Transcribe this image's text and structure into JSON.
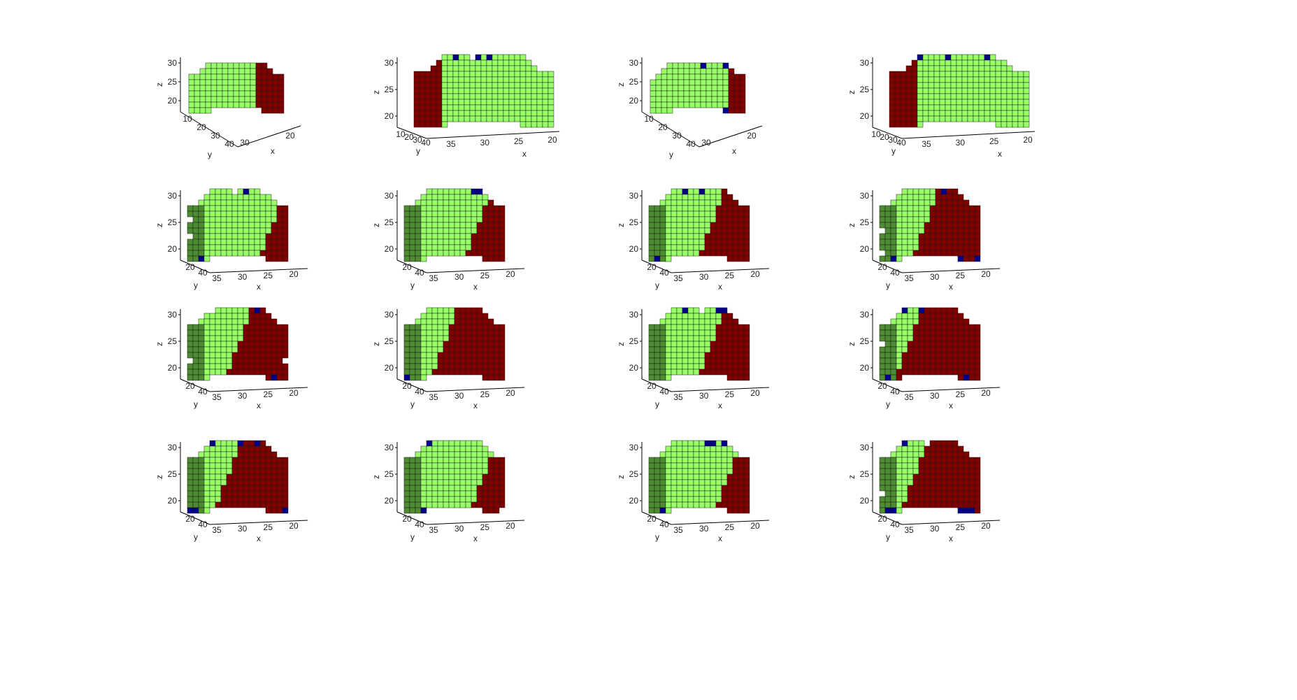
{
  "colors": {
    "light_green": "#99ff66",
    "dark_green": "#4d8c33",
    "dark_red": "#800000",
    "dark_blue": "#00008b",
    "axis": "#000000",
    "voxel_edge": "#1a1a1a"
  },
  "chart_data": [
    {
      "type": "voxel3d",
      "view": "oblique-yx",
      "axes": {
        "x": {
          "label": "x",
          "ticks": [
            "30",
            "20"
          ]
        },
        "y": {
          "label": "y",
          "ticks": [
            "10",
            "20",
            "30",
            "40"
          ]
        },
        "z": {
          "label": "z",
          "ticks": [
            "30",
            "25",
            "20"
          ]
        }
      },
      "segments": {
        "green_fraction": 0.72,
        "red_fraction": 0.26,
        "blue_fraction": 0.02
      }
    },
    {
      "type": "voxel3d",
      "view": "side-y",
      "axes": {
        "x": {
          "label": "x",
          "ticks": [
            "35",
            "30",
            "25",
            "20"
          ]
        },
        "y": {
          "label": "y",
          "ticks": [
            "10",
            "20",
            "30",
            "40"
          ]
        },
        "z": {
          "label": "z",
          "ticks": [
            "30",
            "25",
            "20"
          ]
        }
      },
      "segments": {
        "green_fraction": 0.82,
        "red_fraction": 0.16,
        "blue_fraction": 0.02
      }
    },
    {
      "type": "voxel3d",
      "view": "oblique-yx",
      "axes": {
        "x": {
          "label": "x",
          "ticks": [
            "30",
            "20"
          ]
        },
        "y": {
          "label": "y",
          "ticks": [
            "10",
            "20",
            "30",
            "40"
          ]
        },
        "z": {
          "label": "z",
          "ticks": [
            "30",
            "25",
            "20"
          ]
        }
      },
      "segments": {
        "green_fraction": 0.8,
        "red_fraction": 0.18,
        "blue_fraction": 0.02
      }
    },
    {
      "type": "voxel3d",
      "view": "side-y",
      "axes": {
        "x": {
          "label": "x",
          "ticks": [
            "35",
            "30",
            "25",
            "20"
          ]
        },
        "y": {
          "label": "y",
          "ticks": [
            "10",
            "20",
            "30",
            "40"
          ]
        },
        "z": {
          "label": "z",
          "ticks": [
            "30",
            "25",
            "20"
          ]
        }
      },
      "segments": {
        "green_fraction": 0.8,
        "red_fraction": 0.18,
        "blue_fraction": 0.02
      }
    },
    {
      "type": "voxel3d",
      "view": "front-x",
      "axes": {
        "x": {
          "label": "x",
          "ticks": [
            "35",
            "30",
            "25",
            "20"
          ]
        },
        "y": {
          "label": "y",
          "ticks": [
            "20",
            "40"
          ]
        },
        "z": {
          "label": "z",
          "ticks": [
            "30",
            "25",
            "20"
          ]
        }
      },
      "segments": {
        "green_fraction": 0.84,
        "red_fraction": 0.14,
        "blue_fraction": 0.02
      }
    },
    {
      "type": "voxel3d",
      "view": "front-x",
      "axes": {
        "x": {
          "label": "x",
          "ticks": [
            "35",
            "30",
            "25",
            "20"
          ]
        },
        "y": {
          "label": "y",
          "ticks": [
            "20",
            "40"
          ]
        },
        "z": {
          "label": "z",
          "ticks": [
            "30",
            "25",
            "20"
          ]
        }
      },
      "segments": {
        "green_fraction": 0.72,
        "red_fraction": 0.26,
        "blue_fraction": 0.02
      }
    },
    {
      "type": "voxel3d",
      "view": "front-x",
      "axes": {
        "x": {
          "label": "x",
          "ticks": [
            "35",
            "30",
            "25",
            "20"
          ]
        },
        "y": {
          "label": "y",
          "ticks": [
            "20",
            "40"
          ]
        },
        "z": {
          "label": "z",
          "ticks": [
            "30",
            "25",
            "20"
          ]
        }
      },
      "segments": {
        "green_fraction": 0.6,
        "red_fraction": 0.38,
        "blue_fraction": 0.02
      }
    },
    {
      "type": "voxel3d",
      "view": "front-x",
      "axes": {
        "x": {
          "label": "x",
          "ticks": [
            "35",
            "30",
            "25",
            "20"
          ]
        },
        "y": {
          "label": "y",
          "ticks": [
            "20",
            "40"
          ]
        },
        "z": {
          "label": "z",
          "ticks": [
            "30",
            "25",
            "20"
          ]
        }
      },
      "segments": {
        "green_fraction": 0.45,
        "red_fraction": 0.53,
        "blue_fraction": 0.02
      }
    },
    {
      "type": "voxel3d",
      "view": "front-x",
      "axes": {
        "x": {
          "label": "x",
          "ticks": [
            "35",
            "30",
            "25",
            "20"
          ]
        },
        "y": {
          "label": "y",
          "ticks": [
            "20",
            "40"
          ]
        },
        "z": {
          "label": "z",
          "ticks": [
            "30",
            "25",
            "20"
          ]
        }
      },
      "segments": {
        "green_fraction": 0.48,
        "red_fraction": 0.5,
        "blue_fraction": 0.02
      }
    },
    {
      "type": "voxel3d",
      "view": "front-x",
      "axes": {
        "x": {
          "label": "x",
          "ticks": [
            "35",
            "30",
            "25",
            "20"
          ]
        },
        "y": {
          "label": "y",
          "ticks": [
            "20",
            "40"
          ]
        },
        "z": {
          "label": "z",
          "ticks": [
            "30",
            "25",
            "20"
          ]
        }
      },
      "segments": {
        "green_fraction": 0.38,
        "red_fraction": 0.6,
        "blue_fraction": 0.02
      }
    },
    {
      "type": "voxel3d",
      "view": "front-x",
      "axes": {
        "x": {
          "label": "x",
          "ticks": [
            "35",
            "30",
            "25",
            "20"
          ]
        },
        "y": {
          "label": "y",
          "ticks": [
            "20",
            "40"
          ]
        },
        "z": {
          "label": "z",
          "ticks": [
            "30",
            "25",
            "20"
          ]
        }
      },
      "segments": {
        "green_fraction": 0.62,
        "red_fraction": 0.36,
        "blue_fraction": 0.02
      }
    },
    {
      "type": "voxel3d",
      "view": "front-x",
      "axes": {
        "x": {
          "label": "x",
          "ticks": [
            "35",
            "30",
            "25",
            "20"
          ]
        },
        "y": {
          "label": "y",
          "ticks": [
            "20",
            "40"
          ]
        },
        "z": {
          "label": "z",
          "ticks": [
            "30",
            "25",
            "20"
          ]
        }
      },
      "segments": {
        "green_fraction": 0.3,
        "red_fraction": 0.68,
        "blue_fraction": 0.02
      }
    },
    {
      "type": "voxel3d",
      "view": "front-x",
      "axes": {
        "x": {
          "label": "x",
          "ticks": [
            "35",
            "30",
            "25",
            "20"
          ]
        },
        "y": {
          "label": "y",
          "ticks": [
            "20",
            "40"
          ]
        },
        "z": {
          "label": "z",
          "ticks": [
            "30",
            "25",
            "20"
          ]
        }
      },
      "segments": {
        "green_fraction": 0.38,
        "red_fraction": 0.6,
        "blue_fraction": 0.02
      }
    },
    {
      "type": "voxel3d",
      "view": "front-x",
      "axes": {
        "x": {
          "label": "x",
          "ticks": [
            "35",
            "30",
            "25",
            "20"
          ]
        },
        "y": {
          "label": "y",
          "ticks": [
            "20",
            "40"
          ]
        },
        "z": {
          "label": "z",
          "ticks": [
            "30",
            "25",
            "20"
          ]
        }
      },
      "segments": {
        "green_fraction": 0.78,
        "red_fraction": 0.2,
        "blue_fraction": 0.02
      }
    },
    {
      "type": "voxel3d",
      "view": "front-x",
      "axes": {
        "x": {
          "label": "x",
          "ticks": [
            "35",
            "30",
            "25",
            "20"
          ]
        },
        "y": {
          "label": "y",
          "ticks": [
            "20",
            "40"
          ]
        },
        "z": {
          "label": "z",
          "ticks": [
            "30",
            "25",
            "20"
          ]
        }
      },
      "segments": {
        "green_fraction": 0.78,
        "red_fraction": 0.2,
        "blue_fraction": 0.02
      }
    },
    {
      "type": "voxel3d",
      "view": "front-x",
      "axes": {
        "x": {
          "label": "x",
          "ticks": [
            "35",
            "30",
            "25",
            "20"
          ]
        },
        "y": {
          "label": "y",
          "ticks": [
            "20",
            "40"
          ]
        },
        "z": {
          "label": "z",
          "ticks": [
            "30",
            "25",
            "20"
          ]
        }
      },
      "segments": {
        "green_fraction": 0.32,
        "red_fraction": 0.66,
        "blue_fraction": 0.02
      }
    }
  ]
}
